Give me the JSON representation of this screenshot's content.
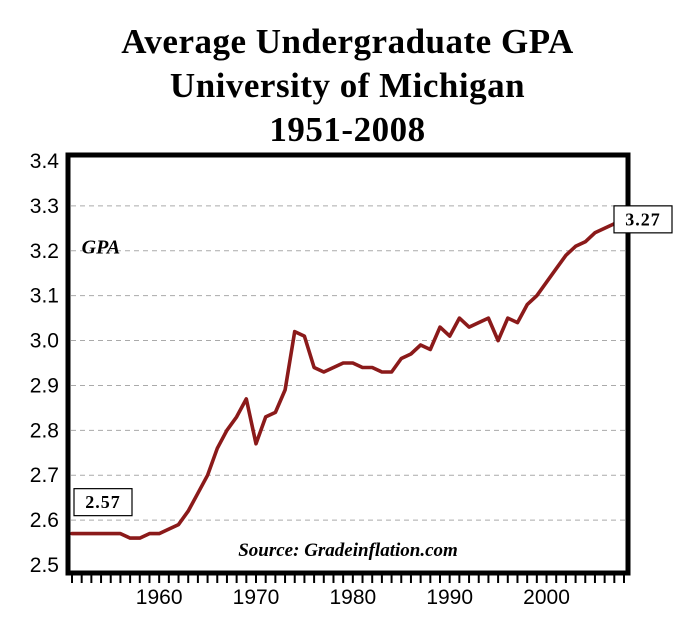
{
  "title": {
    "line1": "Average Undergraduate GPA",
    "line2": "University of Michigan",
    "line3": "1951-2008"
  },
  "chart_data": {
    "type": "line",
    "title": "Average Undergraduate GPA University of Michigan 1951-2008",
    "xlabel": "",
    "ylabel": "GPA",
    "ylim": [
      2.5,
      3.4
    ],
    "ytick_step": 0.1,
    "xlim": [
      1951,
      2008
    ],
    "xticks_labeled": [
      1960,
      1970,
      1980,
      1990,
      2000
    ],
    "grid": "horizontal-dashed",
    "grid_color": "#aaaaaa",
    "line_color": "#8B1A1A",
    "series": [
      {
        "name": "Average Undergraduate GPA",
        "years": [
          1951,
          1952,
          1953,
          1954,
          1955,
          1956,
          1957,
          1958,
          1959,
          1960,
          1961,
          1962,
          1963,
          1964,
          1965,
          1966,
          1967,
          1968,
          1969,
          1970,
          1971,
          1972,
          1973,
          1974,
          1975,
          1976,
          1977,
          1978,
          1979,
          1980,
          1981,
          1982,
          1983,
          1984,
          1985,
          1986,
          1987,
          1988,
          1989,
          1990,
          1991,
          1992,
          1993,
          1994,
          1995,
          1996,
          1997,
          1998,
          1999,
          2000,
          2001,
          2002,
          2003,
          2004,
          2005,
          2006,
          2007,
          2008
        ],
        "values": [
          2.57,
          2.57,
          2.57,
          2.57,
          2.57,
          2.57,
          2.56,
          2.56,
          2.57,
          2.57,
          2.58,
          2.59,
          2.62,
          2.66,
          2.7,
          2.76,
          2.8,
          2.83,
          2.87,
          2.77,
          2.83,
          2.84,
          2.89,
          3.02,
          3.01,
          2.94,
          2.93,
          2.94,
          2.95,
          2.95,
          2.94,
          2.94,
          2.93,
          2.93,
          2.96,
          2.97,
          2.99,
          2.98,
          3.03,
          3.01,
          3.05,
          3.03,
          3.04,
          3.05,
          3.0,
          3.05,
          3.04,
          3.08,
          3.1,
          3.13,
          3.16,
          3.19,
          3.21,
          3.22,
          3.24,
          3.25,
          3.26,
          3.27
        ]
      }
    ],
    "annotations": [
      {
        "text": "2.57",
        "year": 1951,
        "value": 2.64,
        "boxed": true
      },
      {
        "text": "3.27",
        "year": 2008,
        "value": 3.27,
        "boxed": true
      }
    ],
    "inner_labels": [
      {
        "text": "GPA",
        "year": 1952,
        "value": 3.21
      }
    ],
    "source": "Source: Gradeinflation.com"
  }
}
